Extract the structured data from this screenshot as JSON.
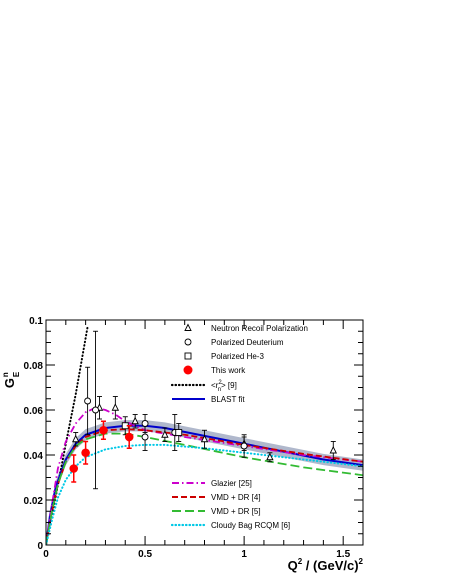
{
  "chart_data": {
    "type": "scatter",
    "xlabel": {
      "main": "Q",
      "sup": "2",
      "rest": " / (GeV/c)",
      "sup2": "2"
    },
    "ylabel": {
      "main": "G",
      "sup": "n",
      "sub": "E"
    },
    "xlim": [
      0,
      1.6
    ],
    "ylim": [
      0,
      0.1
    ],
    "x_ticks": [
      {
        "value": 0,
        "label": "0"
      },
      {
        "value": 0.5,
        "label": "0.5"
      },
      {
        "value": 1,
        "label": "1"
      },
      {
        "value": 1.5,
        "label": "1.5"
      }
    ],
    "y_ticks": [
      {
        "value": 0,
        "label": "0"
      },
      {
        "value": 0.02,
        "label": "0.02"
      },
      {
        "value": 0.04,
        "label": "0.04"
      },
      {
        "value": 0.06,
        "label": "0.06"
      },
      {
        "value": 0.08,
        "label": "0.08"
      },
      {
        "value": 0.1,
        "label": "0.1"
      }
    ],
    "grid": false,
    "legend_position": "top-right and bottom-center",
    "point_series": [
      {
        "key": "neutron_recoil",
        "name": "Neutron Recoil Polarization",
        "marker": "triangle",
        "points": [
          {
            "x": 0.15,
            "y": 0.047,
            "err": 0.003
          },
          {
            "x": 0.27,
            "y": 0.061,
            "err": 0.005
          },
          {
            "x": 0.35,
            "y": 0.061,
            "err": 0.005
          },
          {
            "x": 0.45,
            "y": 0.055,
            "err": 0.003
          },
          {
            "x": 0.6,
            "y": 0.049,
            "err": 0.003
          },
          {
            "x": 0.8,
            "y": 0.047,
            "err": 0.004
          },
          {
            "x": 1.0,
            "y": 0.045,
            "err": 0.003
          },
          {
            "x": 1.13,
            "y": 0.039,
            "err": 0.002
          },
          {
            "x": 1.45,
            "y": 0.042,
            "err": 0.004
          }
        ]
      },
      {
        "key": "pol_deuterium",
        "name": "Polarized Deuterium",
        "marker": "circle",
        "points": [
          {
            "x": 0.21,
            "y": 0.064,
            "err": 0.015
          },
          {
            "x": 0.25,
            "y": 0.06,
            "err": 0.035
          },
          {
            "x": 0.5,
            "y": 0.048,
            "err": 0.006
          },
          {
            "x": 0.5,
            "y": 0.054,
            "err": 0.004
          },
          {
            "x": 0.65,
            "y": 0.05,
            "err": 0.008
          },
          {
            "x": 1.0,
            "y": 0.044,
            "err": 0.005
          }
        ]
      },
      {
        "key": "pol_he3",
        "name": "Polarized He-3",
        "marker": "square",
        "points": [
          {
            "x": 0.4,
            "y": 0.053,
            "err": 0.004
          },
          {
            "x": 0.67,
            "y": 0.05,
            "err": 0.004
          }
        ]
      },
      {
        "key": "this_work",
        "name": "This work",
        "marker": "filled-circle",
        "color": "#ff0000",
        "points": [
          {
            "x": 0.14,
            "y": 0.034,
            "err": 0.006
          },
          {
            "x": 0.2,
            "y": 0.041,
            "err": 0.005
          },
          {
            "x": 0.29,
            "y": 0.051,
            "err": 0.004
          },
          {
            "x": 0.42,
            "y": 0.048,
            "err": 0.005
          }
        ]
      }
    ],
    "curves": [
      {
        "key": "r2",
        "name": "<r",
        "name_sup": "2",
        "name_sub": "n",
        "name_after": "> [9]",
        "color": "#000000",
        "style": "dotted",
        "x": [
          0,
          0.05,
          0.1,
          0.15,
          0.21
        ],
        "y": [
          0,
          0.022,
          0.045,
          0.067,
          0.097
        ]
      },
      {
        "key": "blast",
        "name": "BLAST fit",
        "color": "#0000cc",
        "style": "solid",
        "band_color": "#b0b8cc",
        "band_halfwidth": 0.0025,
        "x": [
          0,
          0.02,
          0.05,
          0.1,
          0.15,
          0.2,
          0.3,
          0.4,
          0.5,
          0.6,
          0.8,
          1.0,
          1.2,
          1.4,
          1.6
        ],
        "y": [
          0,
          0.013,
          0.026,
          0.038,
          0.045,
          0.049,
          0.052,
          0.053,
          0.053,
          0.052,
          0.0485,
          0.045,
          0.0415,
          0.038,
          0.0355
        ]
      },
      {
        "key": "glazier",
        "name": "Glazier [25]",
        "color": "#cc00cc",
        "style": "dashdot",
        "x": [
          0,
          0.03,
          0.06,
          0.1,
          0.15,
          0.2,
          0.25,
          0.3,
          0.35,
          0.4,
          0.5,
          0.7,
          1.0,
          1.3,
          1.6
        ],
        "y": [
          0,
          0.018,
          0.034,
          0.046,
          0.054,
          0.059,
          0.061,
          0.06,
          0.058,
          0.055,
          0.051,
          0.048,
          0.044,
          0.04,
          0.037
        ]
      },
      {
        "key": "vmd_dr4",
        "name": "VMD + DR [4]",
        "color": "#cc0000",
        "style": "dashed",
        "x": [
          0,
          0.03,
          0.06,
          0.1,
          0.15,
          0.2,
          0.3,
          0.4,
          0.5,
          0.7,
          1.0,
          1.3,
          1.6
        ],
        "y": [
          0,
          0.015,
          0.027,
          0.037,
          0.044,
          0.048,
          0.051,
          0.0515,
          0.051,
          0.049,
          0.0445,
          0.0405,
          0.037
        ]
      },
      {
        "key": "vmd_dr5",
        "name": "VMD + DR [5]",
        "color": "#33bb33",
        "style": "longdash",
        "x": [
          0,
          0.03,
          0.06,
          0.1,
          0.15,
          0.2,
          0.3,
          0.4,
          0.5,
          0.7,
          1.0,
          1.3,
          1.6
        ],
        "y": [
          0,
          0.015,
          0.027,
          0.037,
          0.044,
          0.047,
          0.0495,
          0.0495,
          0.048,
          0.0445,
          0.039,
          0.0345,
          0.031
        ]
      },
      {
        "key": "cloudy_bag",
        "name": "Cloudy Bag RCQM [6]",
        "color": "#00c8e6",
        "style": "dotted",
        "x": [
          0,
          0.03,
          0.06,
          0.1,
          0.15,
          0.2,
          0.3,
          0.4,
          0.5,
          0.6,
          0.8,
          1.0,
          1.3,
          1.6
        ],
        "y": [
          0,
          0.011,
          0.021,
          0.029,
          0.035,
          0.039,
          0.0425,
          0.044,
          0.0445,
          0.0445,
          0.043,
          0.041,
          0.038,
          0.035
        ]
      }
    ]
  }
}
